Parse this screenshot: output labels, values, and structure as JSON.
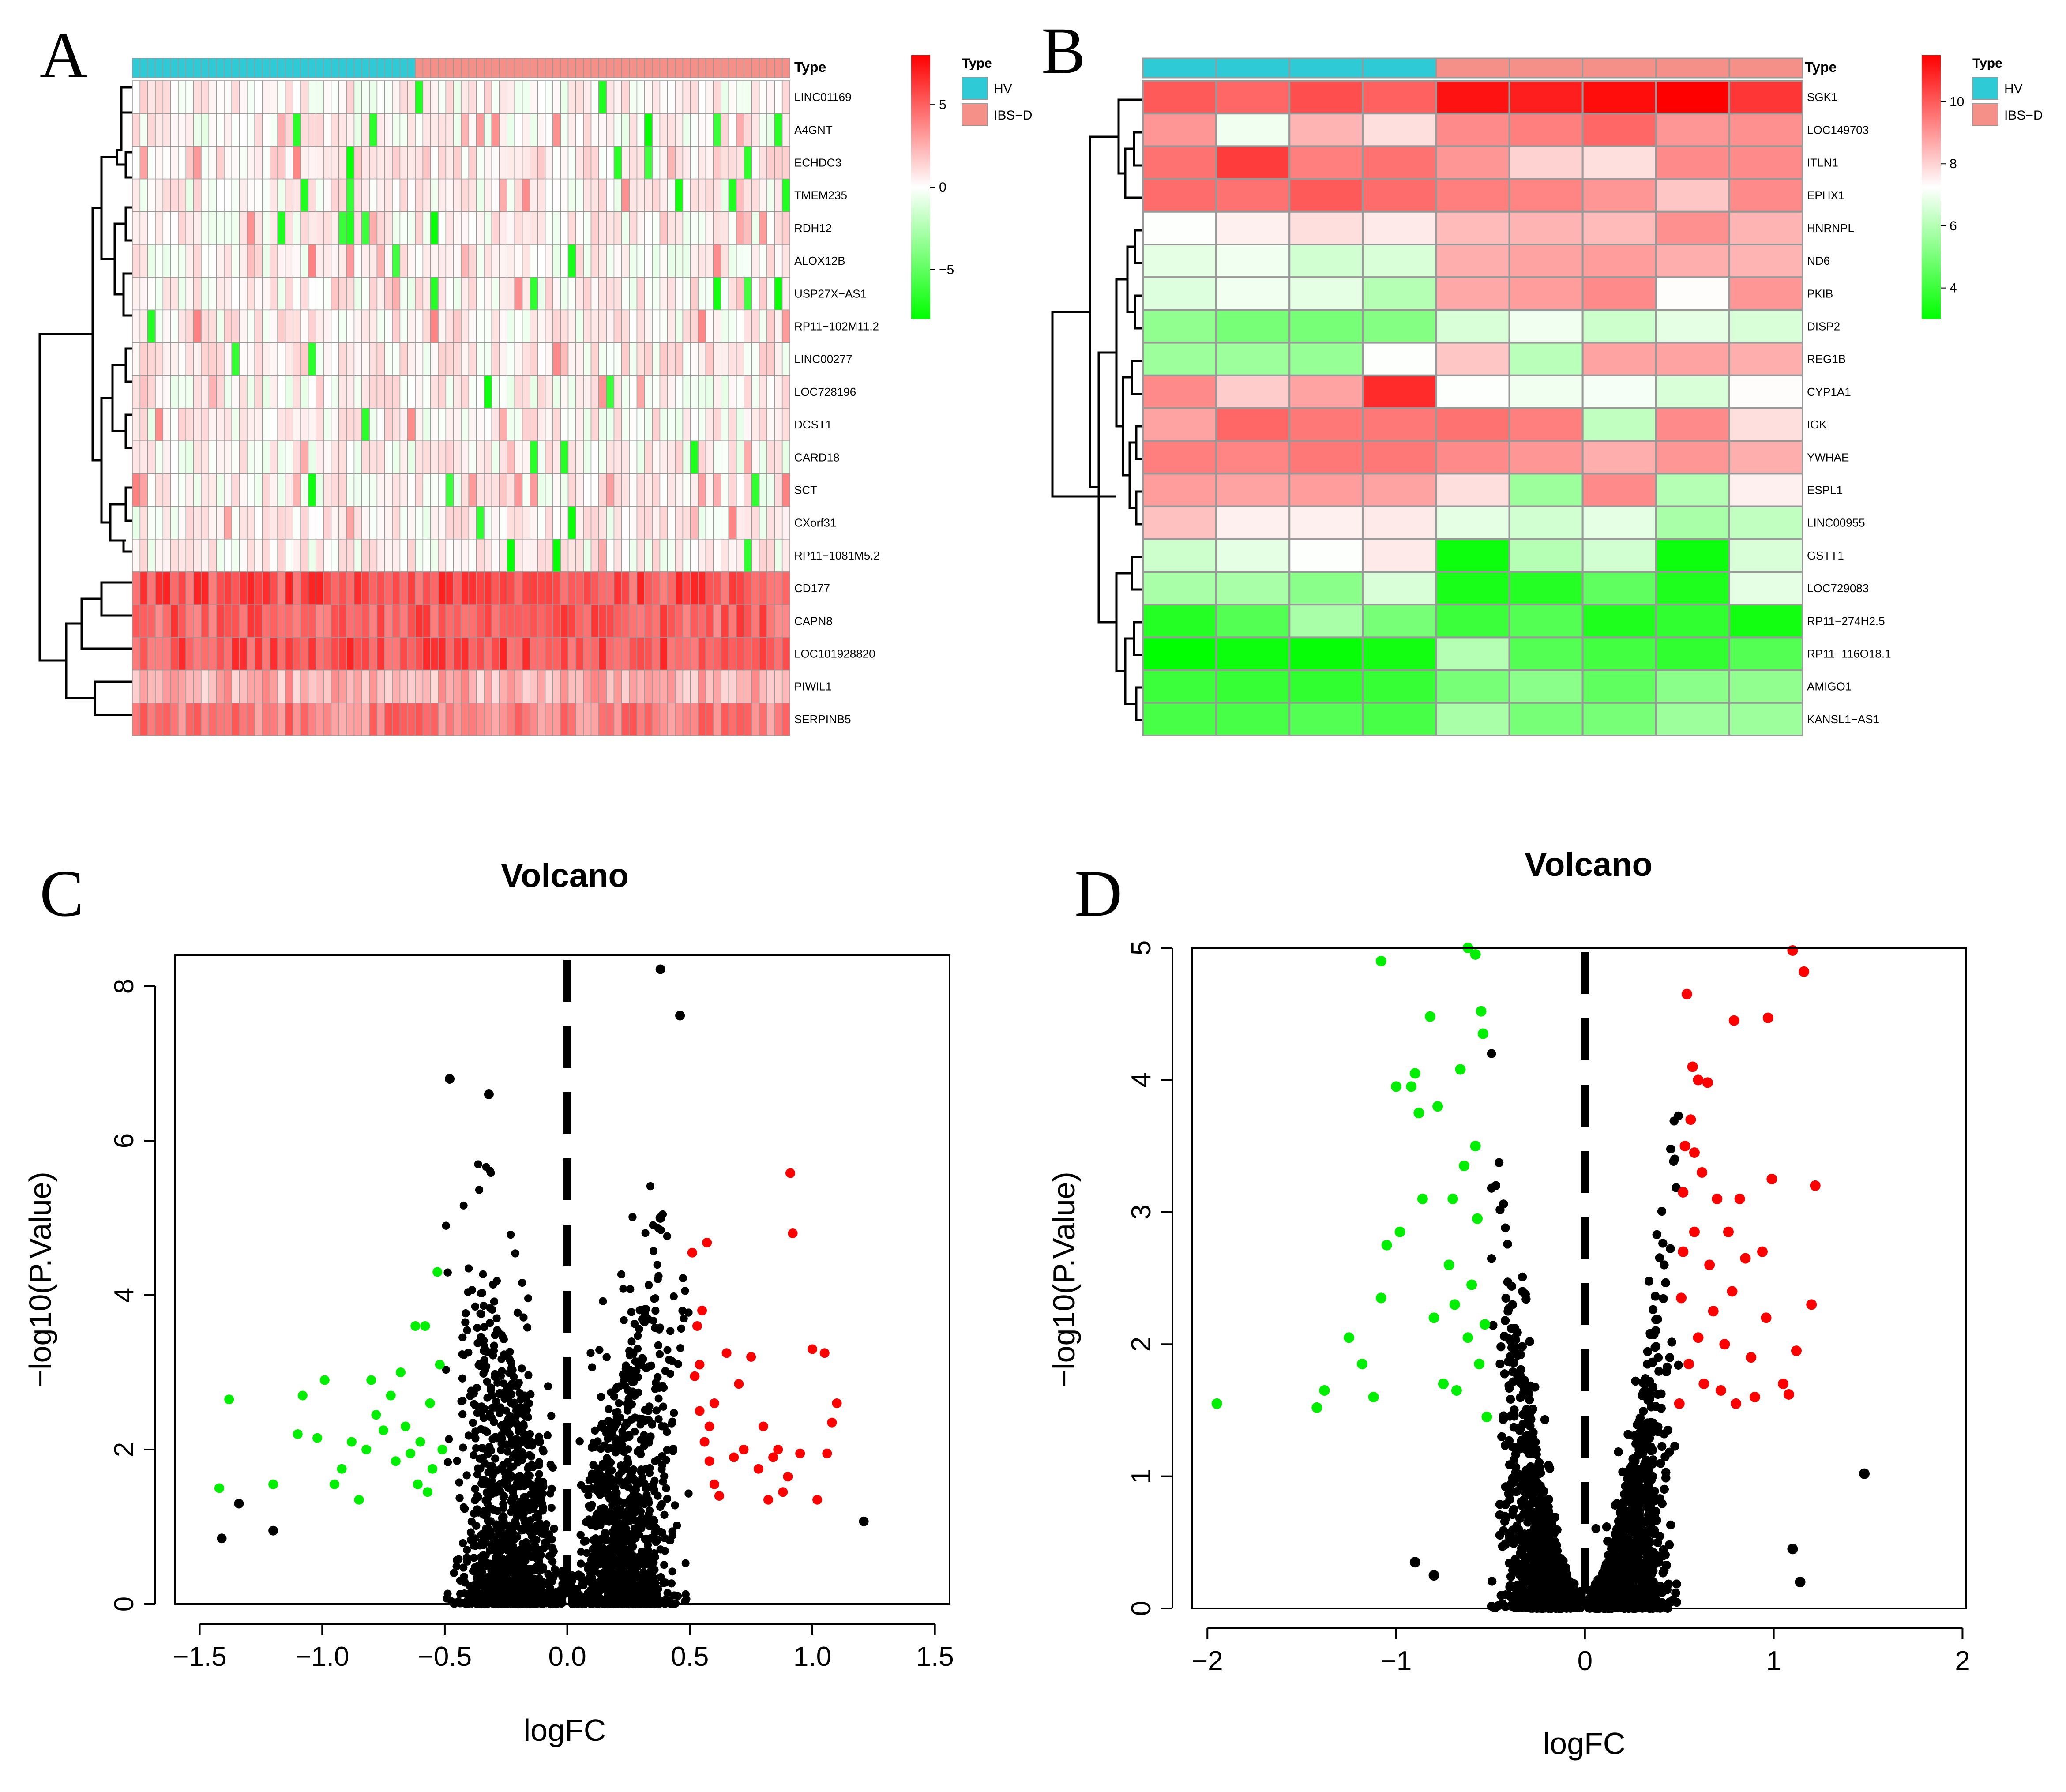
{
  "panels": {
    "a": {
      "letter": "A"
    },
    "b": {
      "letter": "B"
    },
    "c": {
      "letter": "C"
    },
    "d": {
      "letter": "D"
    }
  },
  "colors": {
    "hv": "#2ECBD6",
    "ibsd": "#F49088",
    "low": "#00FF00",
    "mid": "#FFFFFF",
    "high": "#FF0000",
    "up": "#FF0000",
    "down": "#00EE00",
    "ns": "#000000"
  },
  "chart_data": [
    {
      "type": "heatmap",
      "panel": "A",
      "annotation_label": "Type",
      "legend": {
        "title": "Type",
        "entries": [
          "HV",
          "IBS−D"
        ]
      },
      "colorbar": {
        "ticks": [
          -5,
          0,
          5
        ],
        "tick_labels": [
          "−5",
          "0",
          "5"
        ],
        "range": [
          -8,
          8
        ]
      },
      "groups": {
        "HV": 37,
        "IBS-D": 49
      },
      "genes": [
        "LINC01169",
        "A4GNT",
        "ECHDC3",
        "TMEM235",
        "RDH12",
        "ALOX12B",
        "USP27X−AS1",
        "RP11−102M11.2",
        "LINC00277",
        "LOC728196",
        "DCST1",
        "CARD18",
        "SCT",
        "CXorf31",
        "RP11−1081M5.2",
        "CD177",
        "CAPN8",
        "LOC101928820",
        "PIWIL1",
        "SERPINB5"
      ],
      "gene_means": [
        0.4,
        0.2,
        0.8,
        0.3,
        0.5,
        0.3,
        0.4,
        0.5,
        0.6,
        0.3,
        0.4,
        0.3,
        0.3,
        0.3,
        0.4,
        5.5,
        5.0,
        5.5,
        2.5,
        4.0
      ]
    },
    {
      "type": "heatmap",
      "panel": "B",
      "annotation_label": "Type",
      "legend": {
        "title": "Type",
        "entries": [
          "HV",
          "IBS−D"
        ]
      },
      "colorbar": {
        "ticks": [
          4,
          6,
          8,
          10
        ],
        "tick_labels": [
          "4",
          "6",
          "8",
          "10"
        ],
        "range": [
          3,
          11.5
        ]
      },
      "columns": [
        "HV",
        "HV",
        "HV",
        "HV",
        "IBS-D",
        "IBS-D",
        "IBS-D",
        "IBS-D",
        "IBS-D"
      ],
      "genes": [
        "SGK1",
        "LOC149703",
        "ITLN1",
        "EPHX1",
        "HNRNPL",
        "ND6",
        "PKIB",
        "DISP2",
        "REG1B",
        "CYP1A1",
        "IGK",
        "YWHAE",
        "ESPL1",
        "LINC00955",
        "GSTT1",
        "LOC729083",
        "RP11−274H2.5",
        "RP11−116O18.1",
        "AMIGO1",
        "KANSL1−AS1"
      ],
      "matrix": [
        [
          10.0,
          9.8,
          10.2,
          9.9,
          11.2,
          11.0,
          11.3,
          11.5,
          10.6
        ],
        [
          9.0,
          7.0,
          8.5,
          7.8,
          9.2,
          9.4,
          9.8,
          9.0,
          9.1
        ],
        [
          9.6,
          10.5,
          9.4,
          9.6,
          9.0,
          8.0,
          7.8,
          9.2,
          9.2
        ],
        [
          9.7,
          9.6,
          10.0,
          9.7,
          9.4,
          9.3,
          9.0,
          8.2,
          9.2
        ],
        [
          7.2,
          7.5,
          7.8,
          7.6,
          8.4,
          8.5,
          8.4,
          9.1,
          8.5
        ],
        [
          6.8,
          7.0,
          6.5,
          6.6,
          8.6,
          8.8,
          8.9,
          8.6,
          8.5
        ],
        [
          6.7,
          7.0,
          6.8,
          6.0,
          8.7,
          8.9,
          9.2,
          7.3,
          9.0
        ],
        [
          5.4,
          5.0,
          5.0,
          5.2,
          6.6,
          7.0,
          6.4,
          6.8,
          6.6
        ],
        [
          5.6,
          5.6,
          5.5,
          7.2,
          8.2,
          6.1,
          8.8,
          8.8,
          8.6
        ],
        [
          9.2,
          8.1,
          8.8,
          10.8,
          7.2,
          7.0,
          7.1,
          6.6,
          7.3
        ],
        [
          8.8,
          9.8,
          9.5,
          9.5,
          9.6,
          9.4,
          6.2,
          9.2,
          7.8
        ],
        [
          9.4,
          9.3,
          9.5,
          9.5,
          9.2,
          9.0,
          8.6,
          9.0,
          8.6
        ],
        [
          8.9,
          8.8,
          8.9,
          8.8,
          7.8,
          5.6,
          9.2,
          6.0,
          7.5
        ],
        [
          8.3,
          7.5,
          7.5,
          7.6,
          6.8,
          6.5,
          6.8,
          5.8,
          6.2
        ],
        [
          6.4,
          6.8,
          7.2,
          7.6,
          3.2,
          6.0,
          6.5,
          3.2,
          6.6
        ],
        [
          5.8,
          5.8,
          5.3,
          6.6,
          3.4,
          3.6,
          4.6,
          3.5,
          6.8
        ],
        [
          3.6,
          4.4,
          5.8,
          5.0,
          4.0,
          4.4,
          3.5,
          3.8,
          3.3
        ],
        [
          3.0,
          3.2,
          3.1,
          3.3,
          6.0,
          4.4,
          4.1,
          3.8,
          4.4
        ],
        [
          4.0,
          3.9,
          3.8,
          3.9,
          5.0,
          5.3,
          4.6,
          5.3,
          5.4
        ],
        [
          4.2,
          4.2,
          4.4,
          4.2,
          5.8,
          5.0,
          5.0,
          5.6,
          5.6
        ]
      ]
    },
    {
      "type": "scatter",
      "panel": "C",
      "title": "Volcano",
      "xlabel": "logFC",
      "ylabel": "−log10(P.Value)",
      "xlim": [
        -1.6,
        1.56
      ],
      "ylim": [
        0,
        8.4
      ],
      "xticks": [
        -1.5,
        -1.0,
        -0.5,
        0.0,
        0.5,
        1.0,
        1.5
      ],
      "xtick_labels": [
        "−1.5",
        "−1.0",
        "−0.5",
        "0.0",
        "0.5",
        "1.0",
        "1.5"
      ],
      "yticks": [
        0,
        2,
        4,
        6,
        8
      ],
      "ytick_labels": [
        "0",
        "2",
        "4",
        "6",
        "8"
      ],
      "vline_x": 0,
      "logfc_cutoff": 0.5,
      "background_points": 9000,
      "series": [
        {
          "name": "down",
          "points": [
            [
              -1.42,
              1.5
            ],
            [
              -1.38,
              2.65
            ],
            [
              -1.2,
              1.55
            ],
            [
              -1.1,
              2.2
            ],
            [
              -1.08,
              2.7
            ],
            [
              -1.02,
              2.15
            ],
            [
              -0.99,
              2.9
            ],
            [
              -0.95,
              1.55
            ],
            [
              -0.92,
              1.75
            ],
            [
              -0.88,
              2.1
            ],
            [
              -0.85,
              1.35
            ],
            [
              -0.82,
              2.0
            ],
            [
              -0.8,
              2.9
            ],
            [
              -0.78,
              2.45
            ],
            [
              -0.75,
              2.25
            ],
            [
              -0.72,
              2.7
            ],
            [
              -0.7,
              1.85
            ],
            [
              -0.68,
              3.0
            ],
            [
              -0.66,
              2.3
            ],
            [
              -0.64,
              1.95
            ],
            [
              -0.62,
              3.6
            ],
            [
              -0.6,
              2.1
            ],
            [
              -0.58,
              3.6
            ],
            [
              -0.56,
              2.6
            ],
            [
              -0.55,
              1.75
            ],
            [
              -0.53,
              4.3
            ],
            [
              -0.52,
              3.1
            ],
            [
              -0.51,
              2.0
            ],
            [
              -0.57,
              1.45
            ],
            [
              -0.61,
              1.55
            ]
          ]
        },
        {
          "name": "up",
          "points": [
            [
              0.51,
              4.55
            ],
            [
              0.52,
              2.95
            ],
            [
              0.53,
              3.6
            ],
            [
              0.55,
              3.8
            ],
            [
              0.57,
              4.68
            ],
            [
              0.54,
              2.5
            ],
            [
              0.56,
              2.1
            ],
            [
              0.58,
              1.85
            ],
            [
              0.6,
              1.55
            ],
            [
              0.62,
              1.4
            ],
            [
              0.65,
              3.25
            ],
            [
              0.68,
              1.9
            ],
            [
              0.7,
              2.85
            ],
            [
              0.72,
              2.0
            ],
            [
              0.75,
              3.2
            ],
            [
              0.78,
              1.75
            ],
            [
              0.8,
              2.3
            ],
            [
              0.82,
              1.35
            ],
            [
              0.84,
              1.9
            ],
            [
              0.86,
              2.0
            ],
            [
              0.88,
              1.45
            ],
            [
              0.9,
              1.65
            ],
            [
              0.91,
              5.58
            ],
            [
              0.92,
              4.8
            ],
            [
              0.95,
              1.95
            ],
            [
              1.0,
              3.3
            ],
            [
              1.02,
              1.35
            ],
            [
              1.05,
              3.25
            ],
            [
              1.08,
              2.35
            ],
            [
              1.1,
              2.6
            ],
            [
              1.06,
              1.95
            ],
            [
              0.6,
              2.6
            ],
            [
              0.54,
              3.1
            ],
            [
              0.58,
              2.3
            ]
          ]
        },
        {
          "name": "notable_ns",
          "points": [
            [
              0.38,
              8.22
            ],
            [
              0.46,
              7.62
            ],
            [
              -0.48,
              6.8
            ],
            [
              -0.32,
              6.6
            ],
            [
              0.38,
              5.0
            ],
            [
              1.21,
              1.07
            ],
            [
              -1.41,
              0.85
            ],
            [
              -1.34,
              1.3
            ],
            [
              -1.2,
              0.95
            ]
          ]
        }
      ]
    },
    {
      "type": "scatter",
      "panel": "D",
      "title": "Volcano",
      "xlabel": "logFC",
      "ylabel": "−log10(P.Value)",
      "xlim": [
        -2.08,
        2.02
      ],
      "ylim": [
        0,
        5
      ],
      "xticks": [
        -2,
        -1,
        0,
        1,
        2
      ],
      "xtick_labels": [
        "−2",
        "−1",
        "0",
        "1",
        "2"
      ],
      "yticks": [
        0,
        1,
        2,
        3,
        4,
        5
      ],
      "ytick_labels": [
        "0",
        "1",
        "2",
        "3",
        "4",
        "5"
      ],
      "vline_x": 0,
      "logfc_cutoff": 0.5,
      "background_points": 12000,
      "series": [
        {
          "name": "down",
          "points": [
            [
              -1.95,
              1.55
            ],
            [
              -1.42,
              1.52
            ],
            [
              -1.38,
              1.65
            ],
            [
              -1.25,
              2.05
            ],
            [
              -1.18,
              1.85
            ],
            [
              -1.12,
              1.6
            ],
            [
              -1.08,
              2.35
            ],
            [
              -1.05,
              2.75
            ],
            [
              -1.0,
              3.95
            ],
            [
              -0.98,
              2.85
            ],
            [
              -0.92,
              3.95
            ],
            [
              -0.9,
              4.05
            ],
            [
              -0.88,
              3.75
            ],
            [
              -0.86,
              3.1
            ],
            [
              -0.82,
              4.48
            ],
            [
              -0.8,
              2.2
            ],
            [
              -0.78,
              3.8
            ],
            [
              -0.75,
              1.7
            ],
            [
              -0.72,
              2.6
            ],
            [
              -0.7,
              3.1
            ],
            [
              -0.68,
              1.65
            ],
            [
              -0.66,
              4.08
            ],
            [
              -0.64,
              3.35
            ],
            [
              -0.62,
              5.0
            ],
            [
              -0.6,
              2.45
            ],
            [
              -0.58,
              3.5
            ],
            [
              -0.56,
              1.85
            ],
            [
              -0.55,
              4.52
            ],
            [
              -0.54,
              4.35
            ],
            [
              -0.53,
              2.15
            ],
            [
              -0.52,
              1.45
            ],
            [
              -1.08,
              4.9
            ],
            [
              -0.58,
              4.95
            ],
            [
              -0.62,
              2.05
            ],
            [
              -0.57,
              2.95
            ],
            [
              -0.69,
              2.3
            ]
          ]
        },
        {
          "name": "up",
          "points": [
            [
              0.5,
              1.55
            ],
            [
              0.51,
              2.35
            ],
            [
              0.52,
              3.15
            ],
            [
              0.53,
              3.5
            ],
            [
              0.54,
              4.65
            ],
            [
              0.55,
              1.85
            ],
            [
              0.56,
              3.7
            ],
            [
              0.57,
              4.1
            ],
            [
              0.58,
              2.85
            ],
            [
              0.6,
              2.05
            ],
            [
              0.62,
              3.3
            ],
            [
              0.63,
              1.7
            ],
            [
              0.65,
              3.98
            ],
            [
              0.66,
              2.6
            ],
            [
              0.68,
              2.25
            ],
            [
              0.7,
              3.1
            ],
            [
              0.72,
              1.65
            ],
            [
              0.74,
              2.0
            ],
            [
              0.76,
              2.85
            ],
            [
              0.78,
              2.4
            ],
            [
              0.79,
              4.45
            ],
            [
              0.8,
              1.55
            ],
            [
              0.82,
              3.1
            ],
            [
              0.85,
              2.65
            ],
            [
              0.88,
              1.9
            ],
            [
              0.9,
              1.6
            ],
            [
              0.94,
              2.7
            ],
            [
              0.96,
              2.2
            ],
            [
              0.97,
              4.47
            ],
            [
              0.99,
              3.25
            ],
            [
              1.05,
              1.7
            ],
            [
              1.08,
              1.62
            ],
            [
              1.1,
              4.98
            ],
            [
              1.12,
              1.95
            ],
            [
              1.16,
              4.82
            ],
            [
              1.2,
              2.3
            ],
            [
              1.22,
              3.2
            ],
            [
              0.6,
              4.0
            ],
            [
              0.52,
              2.7
            ],
            [
              0.58,
              3.45
            ]
          ]
        },
        {
          "name": "notable_ns",
          "points": [
            [
              1.48,
              1.02
            ],
            [
              1.1,
              0.45
            ],
            [
              1.14,
              0.2
            ],
            [
              -0.9,
              0.35
            ],
            [
              -0.8,
              0.25
            ]
          ]
        }
      ]
    }
  ]
}
